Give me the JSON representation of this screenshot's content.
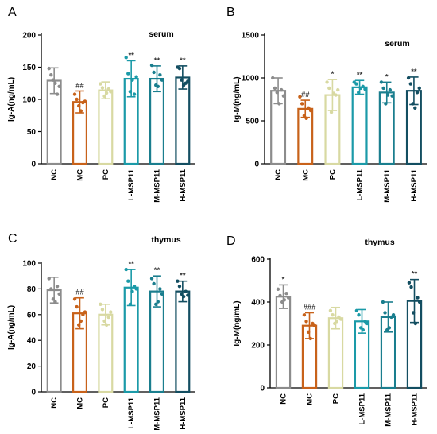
{
  "figure": {
    "categories": [
      "NC",
      "MC",
      "PC",
      "L-MSP11",
      "M-MSP11",
      "H-MSP11"
    ],
    "colors": {
      "NC": "#8c8c8c",
      "MC": "#c8621a",
      "PC": "#d8d9a2",
      "L-MSP11": "#1b9aa8",
      "M-MSP11": "#1a7e8e",
      "H-MSP11": "#134e61"
    }
  },
  "chart_data": [
    {
      "type": "bar",
      "panel": "A",
      "annotation": "serum",
      "ylabel": "Ig-A(ng/mL)",
      "ylim": [
        0,
        200
      ],
      "yticks": [
        0,
        50,
        100,
        150,
        200
      ],
      "categories": [
        "NC",
        "MC",
        "PC",
        "L-MSP11",
        "M-MSP11",
        "H-MSP11"
      ],
      "values": [
        129,
        96,
        114,
        132,
        132,
        134
      ],
      "errors": [
        20,
        17,
        13,
        28,
        20,
        18
      ],
      "significance": [
        "",
        "##",
        "",
        "**",
        "**",
        "**"
      ],
      "points": [
        [
          148,
          138,
          130,
          125,
          108,
          120
        ],
        [
          108,
          100,
          90,
          82,
          95,
          97
        ],
        [
          124,
          118,
          105,
          110,
          116,
          112
        ],
        [
          165,
          140,
          112,
          130,
          108,
          135
        ],
        [
          153,
          142,
          122,
          120,
          138,
          130
        ],
        [
          150,
          148,
          130,
          122,
          125,
          128
        ]
      ]
    },
    {
      "type": "bar",
      "panel": "B",
      "annotation": "serum",
      "ylabel": "Ig-M(ng/mL)",
      "ylim": [
        0,
        1500
      ],
      "yticks": [
        0,
        500,
        1000,
        1500
      ],
      "categories": [
        "NC",
        "MC",
        "PC",
        "L-MSP11",
        "M-MSP11",
        "H-MSP11"
      ],
      "values": [
        850,
        640,
        800,
        890,
        830,
        850
      ],
      "errors": [
        150,
        100,
        180,
        80,
        120,
        160
      ],
      "significance": [
        "",
        "##",
        "*",
        "**",
        "*",
        "**"
      ],
      "points": [
        [
          1000,
          880,
          830,
          700,
          860,
          790
        ],
        [
          780,
          700,
          560,
          530,
          650,
          620
        ],
        [
          950,
          880,
          600,
          820,
          800,
          860
        ],
        [
          950,
          930,
          830,
          880,
          900,
          870
        ],
        [
          950,
          880,
          700,
          800,
          860,
          790
        ],
        [
          1000,
          930,
          700,
          650,
          830,
          880
        ]
      ]
    },
    {
      "type": "bar",
      "panel": "C",
      "annotation": "thymus",
      "ylabel": "Ig-A(ng/mL)",
      "ylim": [
        0,
        100
      ],
      "yticks": [
        0,
        20,
        40,
        60,
        80,
        100
      ],
      "categories": [
        "NC",
        "MC",
        "PC",
        "L-MSP11",
        "M-MSP11",
        "H-MSP11"
      ],
      "values": [
        79,
        61,
        60,
        81,
        78,
        78
      ],
      "errors": [
        10,
        12,
        8,
        14,
        12,
        8
      ],
      "significance": [
        "",
        "##",
        "",
        "**",
        "**",
        "**"
      ],
      "points": [
        [
          88,
          80,
          72,
          70,
          82,
          76
        ],
        [
          72,
          66,
          52,
          55,
          60,
          62
        ],
        [
          68,
          64,
          55,
          52,
          58,
          62
        ],
        [
          95,
          86,
          68,
          78,
          82,
          80
        ],
        [
          88,
          84,
          68,
          70,
          80,
          76
        ],
        [
          86,
          82,
          76,
          74,
          78,
          75
        ]
      ]
    },
    {
      "type": "bar",
      "panel": "D",
      "annotation": "thymus",
      "ylabel": "Ig-M(ng/mL)",
      "ylim": [
        0,
        600
      ],
      "yticks": [
        0,
        200,
        400,
        600
      ],
      "categories": [
        "NC",
        "MC",
        "PC",
        "L-MSP11",
        "M-MSP11",
        "H-MSP11"
      ],
      "values": [
        425,
        290,
        325,
        310,
        330,
        405
      ],
      "errors": [
        55,
        60,
        50,
        55,
        70,
        100
      ],
      "significance": [
        "*",
        "###",
        "",
        "",
        "",
        "**"
      ],
      "points": [
        [
          460,
          430,
          400,
          410,
          440,
          420
        ],
        [
          340,
          310,
          260,
          230,
          300,
          290
        ],
        [
          360,
          340,
          300,
          310,
          330,
          320
        ],
        [
          360,
          340,
          280,
          270,
          310,
          300
        ],
        [
          400,
          350,
          270,
          280,
          330,
          340
        ],
        [
          490,
          470,
          350,
          300,
          420,
          400
        ]
      ]
    }
  ]
}
